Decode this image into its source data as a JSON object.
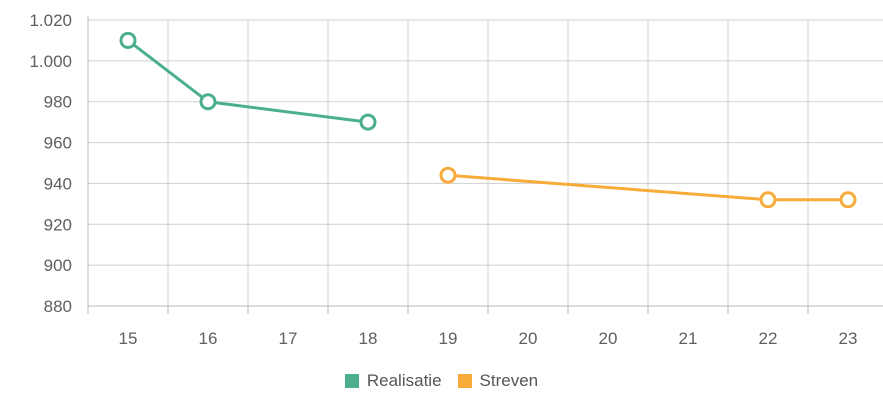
{
  "colors": {
    "grid": "#d0d0d0",
    "axis": "#b8b8b8",
    "text": "#5f5f5f",
    "realisatie": "#4baf8f",
    "streven": "#f8aa3a"
  },
  "chart_data": {
    "type": "line",
    "categories": [
      "15",
      "16",
      "17",
      "18",
      "19",
      "20",
      "20",
      "21",
      "22",
      "23"
    ],
    "ylim": [
      880,
      1020
    ],
    "yticks": [
      880,
      900,
      920,
      940,
      960,
      980,
      1000,
      1020
    ],
    "ytick_labels": [
      "880",
      "900",
      "920",
      "940",
      "960",
      "980",
      "1.000",
      "1.020"
    ],
    "grid": true,
    "legend_position": "bottom-center",
    "series": [
      {
        "name": "Realisatie",
        "color": "#4baf8f",
        "values": [
          1010,
          980,
          null,
          970,
          null,
          null,
          null,
          null,
          null,
          null
        ]
      },
      {
        "name": "Streven",
        "color": "#f8aa3a",
        "values": [
          null,
          null,
          null,
          null,
          944,
          null,
          null,
          null,
          932,
          932
        ]
      }
    ]
  }
}
